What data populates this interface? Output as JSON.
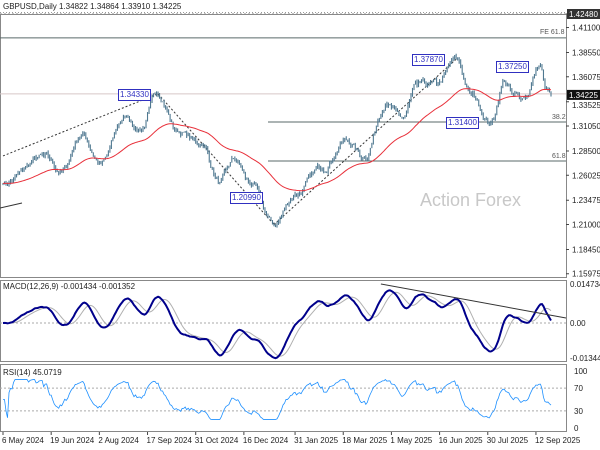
{
  "header": {
    "symbol_line": "GBPUSD,Daily  1.34822 1.34864 1.33910 1.34225"
  },
  "watermark": "Action Forex",
  "chart_data": [
    {
      "type": "candlestick",
      "title": "GBPUSD,Daily",
      "ohlc_last": {
        "open": 1.34822,
        "high": 1.34864,
        "low": 1.3391,
        "close": 1.34225
      },
      "y_ticks": [
        "1.42480",
        "1.41100",
        "1.38550",
        "1.36075",
        "1.33525",
        "1.31050",
        "1.28500",
        "1.26025",
        "1.23475",
        "1.21000",
        "1.18450",
        "1.15975"
      ],
      "ylim": [
        1.15975,
        1.4248
      ],
      "current_price": "1.34225",
      "x_ticks": [
        "6 May 2024",
        "19 Jun 2024",
        "2 Aug 2024",
        "17 Sep 2024",
        "31 Oct 2024",
        "16 Dec 2024",
        "31 Jan 2025",
        "18 Mar 2025",
        "1 May 2025",
        "16 Jun 2025",
        "30 Jul 2025",
        "12 Sep 2025"
      ],
      "x_tick_dates": [
        "2024-05-06",
        "2024-06-19",
        "2024-08-02",
        "2024-09-17",
        "2024-10-31",
        "2024-12-16",
        "2025-01-31",
        "2025-03-18",
        "2025-05-01",
        "2025-06-16",
        "2025-07-30",
        "2025-09-12"
      ],
      "price_path": [
        [
          "2024-05-06",
          1.252
        ],
        [
          "2024-06-12",
          1.279
        ],
        [
          "2024-06-28",
          1.264
        ],
        [
          "2024-07-17",
          1.302
        ],
        [
          "2024-08-05",
          1.272
        ],
        [
          "2024-08-27",
          1.32
        ],
        [
          "2024-09-10",
          1.307
        ],
        [
          "2024-09-26",
          1.3433
        ],
        [
          "2024-10-15",
          1.305
        ],
        [
          "2024-11-06",
          1.292
        ],
        [
          "2024-11-22",
          1.253
        ],
        [
          "2024-12-06",
          1.276
        ],
        [
          "2024-12-20",
          1.252
        ],
        [
          "2025-01-13",
          1.2099
        ],
        [
          "2025-01-31",
          1.241
        ],
        [
          "2025-02-26",
          1.268
        ],
        [
          "2025-03-20",
          1.296
        ],
        [
          "2025-04-07",
          1.279
        ],
        [
          "2025-04-25",
          1.333
        ],
        [
          "2025-05-12",
          1.318
        ],
        [
          "2025-05-26",
          1.352
        ],
        [
          "2025-06-12",
          1.353
        ],
        [
          "2025-07-01",
          1.3787
        ],
        [
          "2025-07-15",
          1.342
        ],
        [
          "2025-08-01",
          1.314
        ],
        [
          "2025-08-14",
          1.356
        ],
        [
          "2025-08-22",
          1.341
        ],
        [
          "2025-09-02",
          1.34
        ],
        [
          "2025-09-17",
          1.3725
        ],
        [
          "2025-09-22",
          1.349
        ],
        [
          "2025-09-26",
          1.34225
        ]
      ],
      "moving_average_color": "#e8303a",
      "bar_color": "#4f7890",
      "annotations": [
        {
          "text": "1.34330",
          "price": 1.3433
        },
        {
          "text": "1.37870",
          "price": 1.3787
        },
        {
          "text": "1.37250",
          "price": 1.3725
        },
        {
          "text": "1.31400",
          "price": 1.314
        },
        {
          "text": "1.20990",
          "price": 1.2099
        }
      ],
      "levels": [
        {
          "label": "FE 61.8",
          "price": 1.4004
        },
        {
          "label": "38.2",
          "price": 1.3146
        },
        {
          "label": "61.8",
          "price": 1.2748
        }
      ]
    },
    {
      "type": "line",
      "title": "MACD(12,26,9) -0.001434 -0.001352",
      "y_ticks": [
        "0.014734",
        "0.00",
        "-0.013442"
      ],
      "ylim": [
        -0.013442,
        0.014734
      ],
      "macd_color": "#00008b",
      "signal_color": "#b0b0b0"
    },
    {
      "type": "line",
      "title": "RSI(14) 45.0719",
      "y_ticks": [
        "100",
        "70",
        "30",
        "0"
      ],
      "ylim": [
        0,
        100
      ],
      "line_color": "#1e90ff"
    }
  ]
}
